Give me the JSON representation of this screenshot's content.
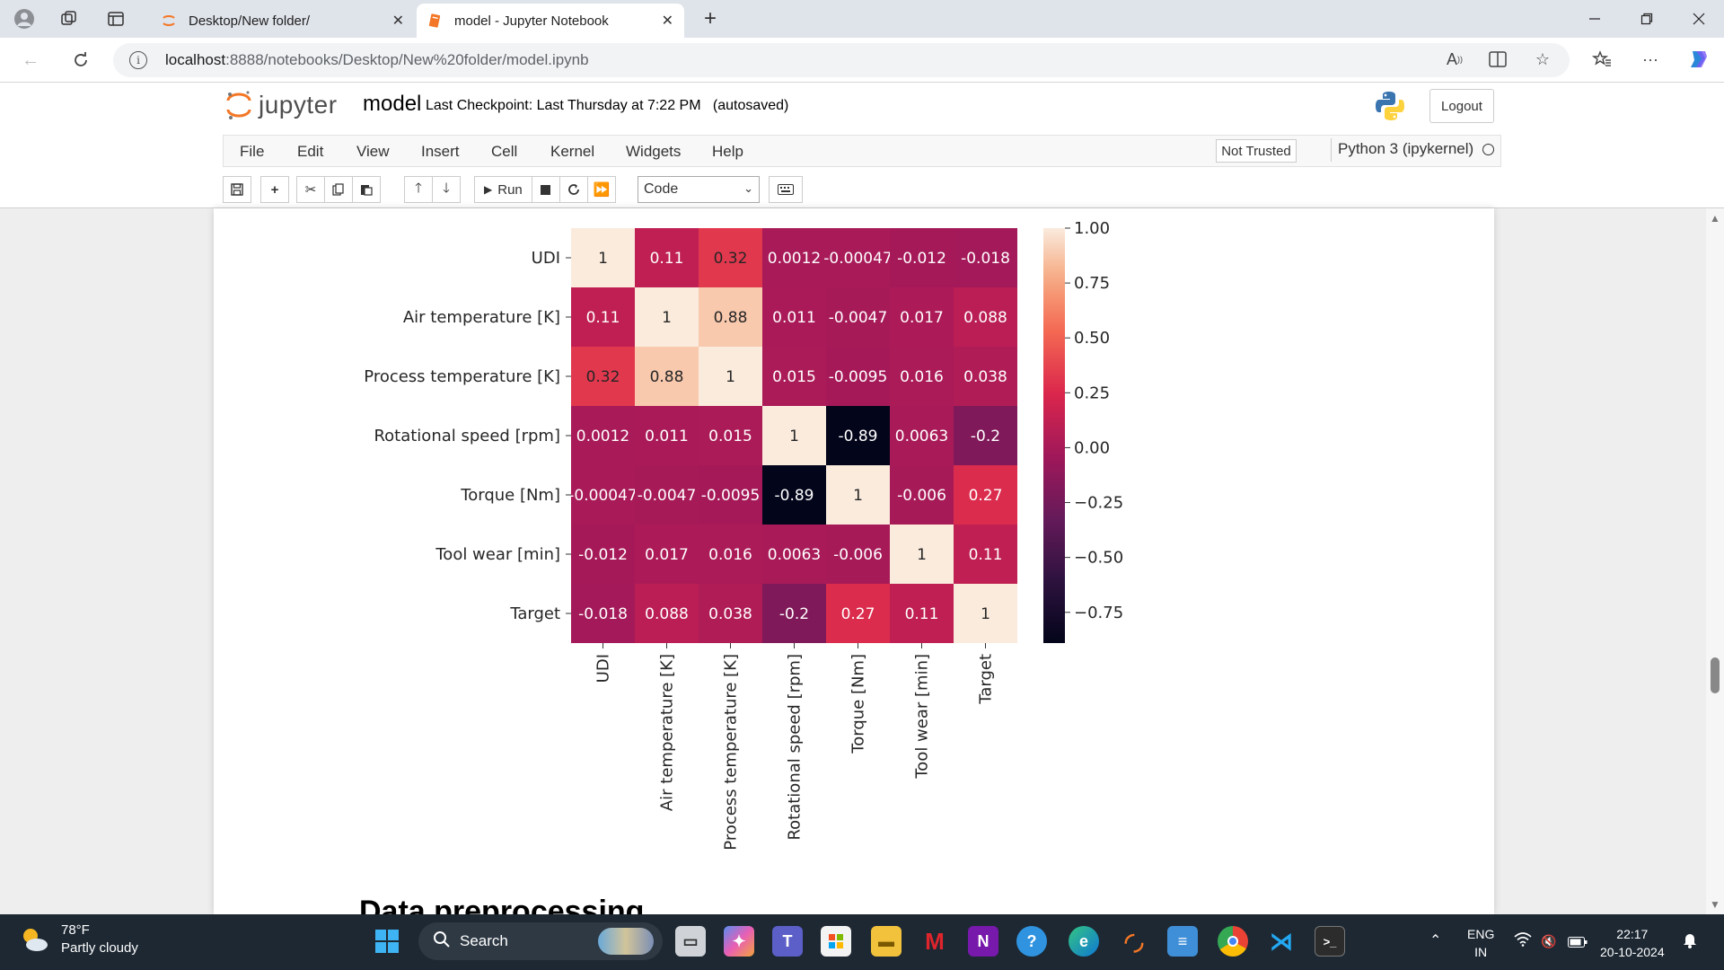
{
  "browser": {
    "tabs": [
      {
        "title": "Desktop/New folder/",
        "active": false
      },
      {
        "title": "model - Jupyter Notebook",
        "active": true
      }
    ],
    "url_host": "localhost",
    "url_path": ":8888/notebooks/Desktop/New%20folder/model.ipynb"
  },
  "jupyter": {
    "logo_text": "jupyter",
    "notebook_name": "model",
    "checkpoint": "Last Checkpoint: Last Thursday at 7:22 PM",
    "autosave": "(autosaved)",
    "logout": "Logout",
    "menu": [
      "File",
      "Edit",
      "View",
      "Insert",
      "Cell",
      "Kernel",
      "Widgets",
      "Help"
    ],
    "trust": "Not Trusted",
    "kernel": "Python 3 (ipykernel)",
    "run_label": "Run",
    "cell_type": "Code"
  },
  "chart_data": {
    "type": "heatmap",
    "labels": [
      "UDI",
      "Air temperature [K]",
      "Process temperature [K]",
      "Rotational speed [rpm]",
      "Torque [Nm]",
      "Tool wear [min]",
      "Target"
    ],
    "matrix": [
      [
        1,
        0.11,
        0.32,
        0.0012,
        -0.00047,
        -0.012,
        -0.018
      ],
      [
        0.11,
        1,
        0.88,
        0.011,
        -0.0047,
        0.017,
        0.088
      ],
      [
        0.32,
        0.88,
        1,
        0.015,
        -0.0095,
        0.016,
        0.038
      ],
      [
        0.0012,
        0.011,
        0.015,
        1,
        -0.89,
        0.0063,
        -0.2
      ],
      [
        -0.00047,
        -0.0047,
        -0.0095,
        -0.89,
        1,
        -0.006,
        0.27
      ],
      [
        -0.012,
        0.017,
        0.016,
        0.0063,
        -0.006,
        1,
        0.11
      ],
      [
        -0.018,
        0.088,
        0.038,
        -0.2,
        0.27,
        0.11,
        1
      ]
    ],
    "cell_labels": [
      [
        "1",
        "0.11",
        "0.32",
        "0.0012",
        "-0.00047",
        "-0.012",
        "-0.018"
      ],
      [
        "0.11",
        "1",
        "0.88",
        "0.011",
        "-0.0047",
        "0.017",
        "0.088"
      ],
      [
        "0.32",
        "0.88",
        "1",
        "0.015",
        "-0.0095",
        "0.016",
        "0.038"
      ],
      [
        "0.0012",
        "0.011",
        "0.015",
        "1",
        "-0.89",
        "0.0063",
        "-0.2"
      ],
      [
        "-0.00047",
        "-0.0047",
        "-0.0095",
        "-0.89",
        "1",
        "-0.006",
        "0.27"
      ],
      [
        "-0.012",
        "0.017",
        "0.016",
        "0.0063",
        "-0.006",
        "1",
        "0.11"
      ],
      [
        "-0.018",
        "0.088",
        "0.038",
        "-0.2",
        "0.27",
        "0.11",
        "1"
      ]
    ],
    "colorbar_range": [
      -0.89,
      1
    ],
    "colorbar_ticks": [
      1.0,
      0.75,
      0.5,
      0.25,
      0.0,
      -0.25,
      -0.5,
      -0.75
    ],
    "colorbar_tick_labels": [
      "1.00",
      "0.75",
      "0.50",
      "0.25",
      "0.00",
      "−0.25",
      "−0.50",
      "−0.75"
    ],
    "colormap": "rocket"
  },
  "section_heading": "Data preprocessing",
  "taskbar": {
    "temp": "78°F",
    "weather": "Partly cloudy",
    "search": "Search",
    "lang1": "ENG",
    "lang2": "IN",
    "time": "22:17",
    "date": "20-10-2024"
  }
}
